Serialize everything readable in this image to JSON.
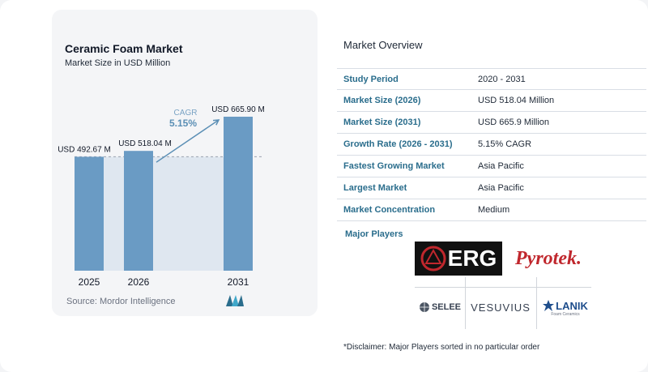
{
  "chart_data": {
    "type": "bar",
    "title": "Ceramic Foam Market",
    "subtitle": "Market Size in USD Million",
    "categories": [
      "2025",
      "2026",
      "2031"
    ],
    "values": [
      492.67,
      518.04,
      665.9
    ],
    "value_labels": [
      "USD 492.67 M",
      "USD 518.04 M",
      "USD 665.90 M"
    ],
    "bar_color": "#6a9bc4",
    "baseline_fill": "#dfe7f0",
    "cagr_label": "CAGR",
    "cagr_value": "5.15%",
    "cagr_color": "#5b8fb5"
  },
  "source": "Source:  Mordor Intelligence",
  "overview": {
    "title": "Market Overview",
    "rows": [
      {
        "label": "Study Period",
        "value": "2020 - 2031"
      },
      {
        "label": "Market Size (2026)",
        "value": "USD 518.04 Million"
      },
      {
        "label": "Market Size (2031)",
        "value": "USD 665.9 Million"
      },
      {
        "label": "Growth Rate (2026 - 2031)",
        "value": "5.15% CAGR"
      },
      {
        "label": "Fastest Growing Market",
        "value": "Asia Pacific"
      },
      {
        "label": "Largest Market",
        "value": "Asia Pacific"
      },
      {
        "label": "Market Concentration",
        "value": "Medium"
      }
    ],
    "players_label": "Major Players",
    "players": [
      "ERG",
      "Pyrotek.",
      "SELEE",
      "VESUVIUS",
      "LANIK"
    ],
    "players_tagline": "Foam Ceramics",
    "disclaimer": "*Disclaimer: Major Players sorted in no particular order"
  }
}
